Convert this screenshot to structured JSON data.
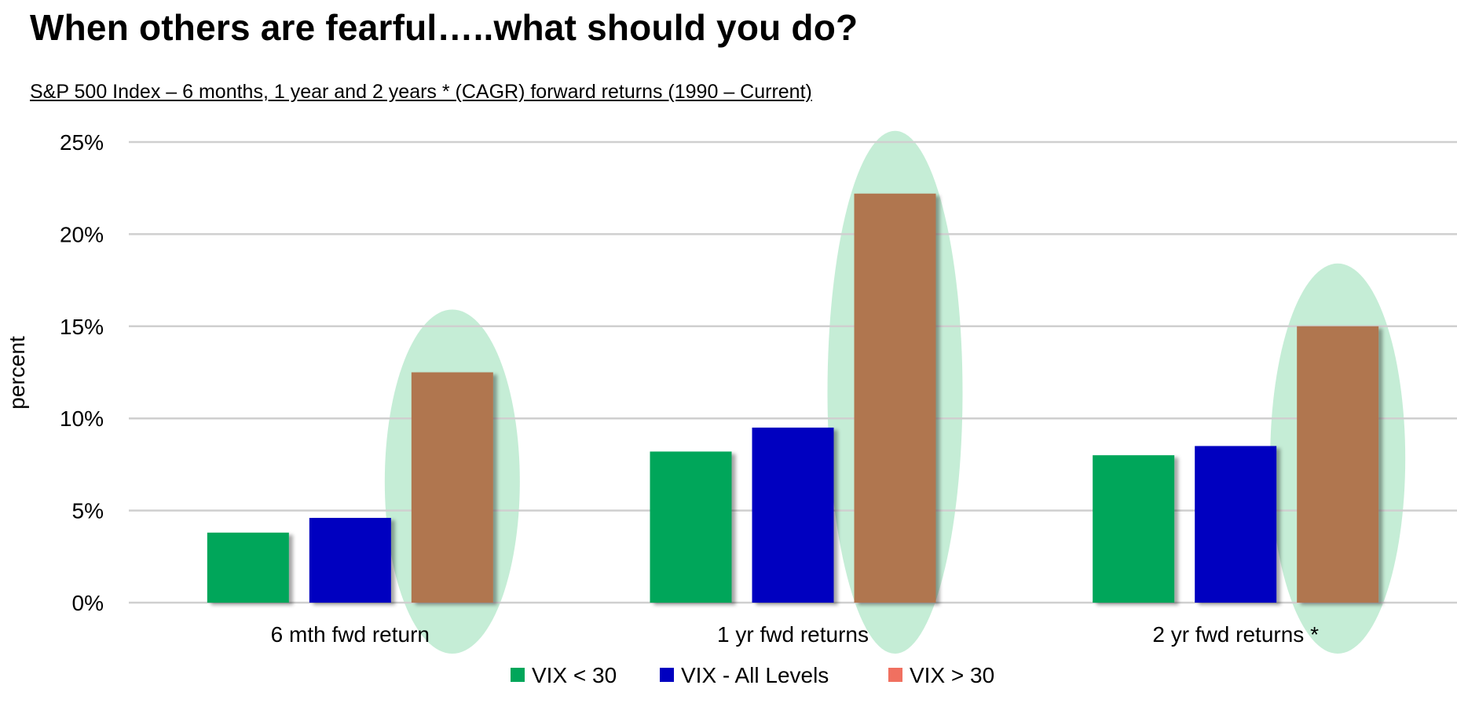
{
  "title": "When others are fearful…..what should you do?",
  "subtitle": "S&P 500 Index – 6 months, 1 year and 2 years * (CAGR) forward returns (1990 – Current)",
  "chart_data": {
    "type": "bar",
    "ylabel": "percent",
    "ylim": [
      0,
      25
    ],
    "yticks": [
      0,
      5,
      10,
      15,
      20,
      25
    ],
    "ytick_labels": [
      "0%",
      "5%",
      "10%",
      "15%",
      "20%",
      "25%"
    ],
    "grid": true,
    "legend_position": "bottom",
    "categories": [
      "6 mth fwd return",
      "1 yr fwd returns",
      "2 yr fwd returns *"
    ],
    "series": [
      {
        "name": "VIX < 30",
        "color": "#00a65a",
        "values": [
          3.8,
          8.2,
          8.0
        ]
      },
      {
        "name": "VIX - All Levels",
        "color": "#0000c0",
        "values": [
          4.6,
          9.5,
          8.5
        ]
      },
      {
        "name": "VIX > 30",
        "color": "#b07650",
        "legend_color": "#f07060",
        "values": [
          12.5,
          22.2,
          15.0
        ]
      }
    ],
    "highlight": {
      "series": "VIX > 30",
      "shape": "ellipse",
      "color": "#c2ecd4"
    }
  }
}
